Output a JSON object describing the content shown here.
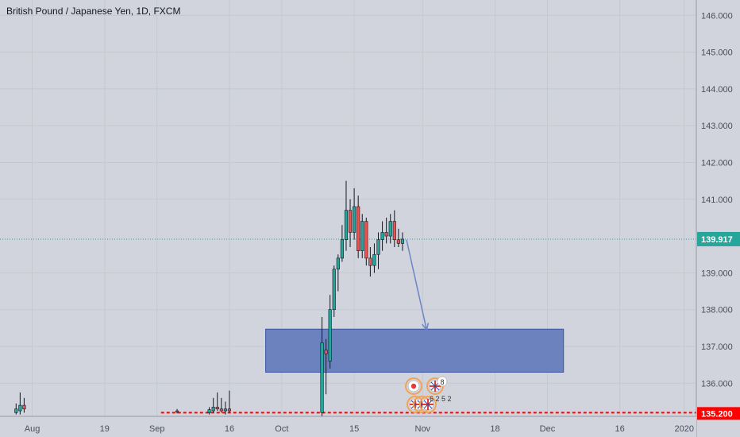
{
  "header": {
    "title": "British Pound / Japanese Yen, 1D, FXCM"
  },
  "colors": {
    "background": "#d1d4dc",
    "up": "#26a69a",
    "down": "#ef5350",
    "axis_text": "#4a4e5a",
    "current_price_badge": "#26a69a",
    "support_line": "#ff0000",
    "zone_fill": "#5b73b9",
    "zone_stroke": "#3d56a3",
    "arrow": "#6b85c4"
  },
  "price_axis": {
    "ticks": [
      "146.000",
      "145.000",
      "144.000",
      "143.000",
      "142.000",
      "141.000",
      "139.000",
      "138.000",
      "137.000",
      "136.000"
    ],
    "tick_values": [
      146,
      145,
      144,
      143,
      142,
      141,
      139,
      138,
      137,
      136
    ],
    "current_price_label": "139.917",
    "current_price": 139.917,
    "support_label": "135.200",
    "support_price": 135.2
  },
  "time_axis": {
    "labels": [
      "Aug",
      "19",
      "Sep",
      "16",
      "Oct",
      "15",
      "Nov",
      "18",
      "Dec",
      "16",
      "2020"
    ],
    "label_days": [
      4,
      22,
      35,
      53,
      66,
      84,
      101,
      119,
      132,
      150,
      166
    ]
  },
  "chart_data": {
    "type": "candlestick",
    "title": "British Pound / Japanese Yen, 1D, FXCM",
    "x_unit": "days since first visible bar",
    "candles": [
      {
        "d": 0,
        "o": 135.2,
        "h": 135.45,
        "l": 135.15,
        "c": 135.3
      },
      {
        "d": 1,
        "o": 135.25,
        "h": 135.75,
        "l": 135.15,
        "c": 135.4
      },
      {
        "d": 2,
        "o": 135.4,
        "h": 135.6,
        "l": 135.2,
        "c": 135.3
      },
      {
        "d": 40,
        "o": 135.22,
        "h": 135.3,
        "l": 135.18,
        "c": 135.25
      },
      {
        "d": 48,
        "o": 135.2,
        "h": 135.35,
        "l": 135.15,
        "c": 135.28
      },
      {
        "d": 49,
        "o": 135.25,
        "h": 135.6,
        "l": 135.2,
        "c": 135.35
      },
      {
        "d": 50,
        "o": 135.35,
        "h": 135.75,
        "l": 135.25,
        "c": 135.3
      },
      {
        "d": 51,
        "o": 135.3,
        "h": 135.6,
        "l": 135.2,
        "c": 135.25
      },
      {
        "d": 52,
        "o": 135.25,
        "h": 135.5,
        "l": 135.15,
        "c": 135.3
      },
      {
        "d": 53,
        "o": 135.3,
        "h": 135.8,
        "l": 135.2,
        "c": 135.25
      },
      {
        "d": 76,
        "o": 135.2,
        "h": 137.8,
        "l": 135.1,
        "c": 137.1
      },
      {
        "d": 77,
        "o": 136.9,
        "h": 137.2,
        "l": 135.7,
        "c": 136.8
      },
      {
        "d": 78,
        "o": 136.6,
        "h": 138.4,
        "l": 136.4,
        "c": 138.0
      },
      {
        "d": 79,
        "o": 138.0,
        "h": 139.2,
        "l": 137.8,
        "c": 139.1
      },
      {
        "d": 80,
        "o": 139.1,
        "h": 139.5,
        "l": 138.5,
        "c": 139.4
      },
      {
        "d": 81,
        "o": 139.4,
        "h": 140.3,
        "l": 139.3,
        "c": 139.9
      },
      {
        "d": 82,
        "o": 139.9,
        "h": 141.5,
        "l": 139.6,
        "c": 140.7
      },
      {
        "d": 83,
        "o": 140.7,
        "h": 141.0,
        "l": 139.7,
        "c": 140.1
      },
      {
        "d": 84,
        "o": 140.1,
        "h": 141.3,
        "l": 139.9,
        "c": 140.8
      },
      {
        "d": 85,
        "o": 140.8,
        "h": 141.1,
        "l": 139.4,
        "c": 139.6
      },
      {
        "d": 86,
        "o": 139.6,
        "h": 140.6,
        "l": 139.4,
        "c": 140.4
      },
      {
        "d": 87,
        "o": 140.4,
        "h": 140.5,
        "l": 139.2,
        "c": 139.4
      },
      {
        "d": 88,
        "o": 139.4,
        "h": 139.7,
        "l": 138.9,
        "c": 139.2
      },
      {
        "d": 89,
        "o": 139.2,
        "h": 139.8,
        "l": 139.0,
        "c": 139.5
      },
      {
        "d": 90,
        "o": 139.5,
        "h": 140.1,
        "l": 139.1,
        "c": 139.9
      },
      {
        "d": 91,
        "o": 139.9,
        "h": 140.4,
        "l": 139.6,
        "c": 140.1
      },
      {
        "d": 92,
        "o": 140.1,
        "h": 140.5,
        "l": 139.8,
        "c": 140.0
      },
      {
        "d": 93,
        "o": 140.0,
        "h": 140.6,
        "l": 139.8,
        "c": 140.4
      },
      {
        "d": 94,
        "o": 140.4,
        "h": 140.7,
        "l": 139.7,
        "c": 139.9
      },
      {
        "d": 95,
        "o": 139.9,
        "h": 140.2,
        "l": 139.7,
        "c": 139.8
      },
      {
        "d": 96,
        "o": 139.8,
        "h": 140.1,
        "l": 139.6,
        "c": 139.917
      }
    ],
    "zone": {
      "d_start": 62,
      "d_end": 136,
      "price_top": 137.47,
      "price_bottom": 136.3
    },
    "arrow": {
      "d_start": 97,
      "price_start": 139.9,
      "d_end": 102,
      "price_end": 137.45
    },
    "support_line": {
      "price": 135.2,
      "d_start": 36,
      "dashed": true
    },
    "current_price_line": {
      "price": 139.917,
      "dotted": true
    },
    "grid": true,
    "event_markers": [
      {
        "icon": "jp-flag",
        "label": ""
      },
      {
        "icon": "uk-flag",
        "label": "8"
      },
      {
        "icon": "mixed-flags",
        "label": "6 2 5 2"
      }
    ],
    "y_range": [
      135.1,
      146.2
    ],
    "x_range": [
      -4,
      169
    ]
  }
}
